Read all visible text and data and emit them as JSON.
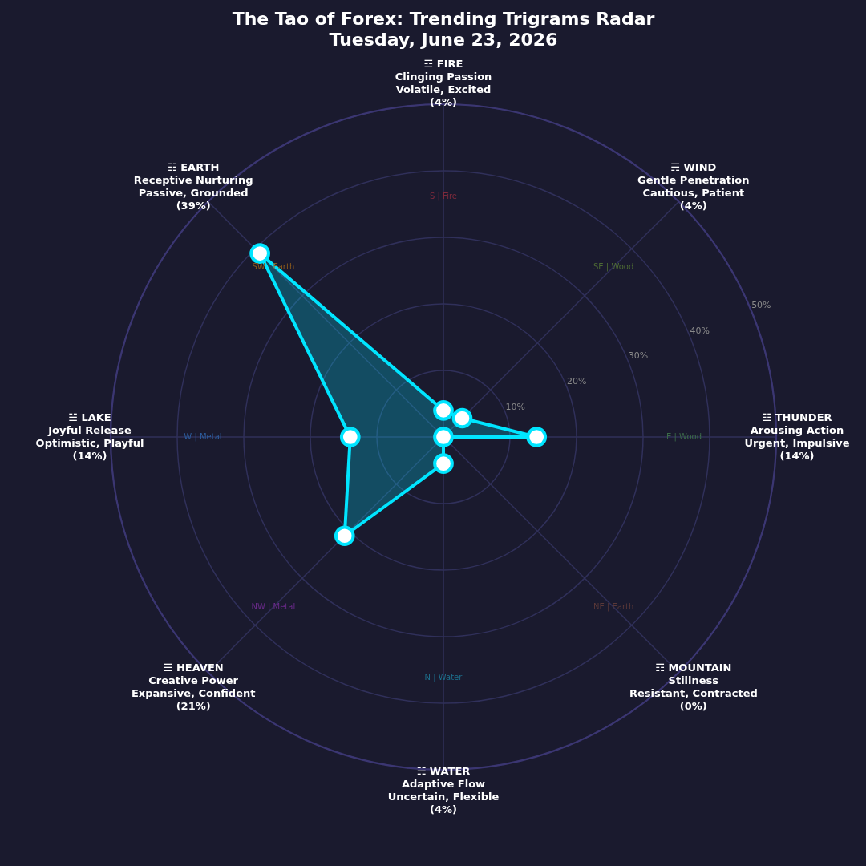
{
  "chart_data": {
    "type": "radar",
    "title": "The Tao of Forex: Trending Trigrams Radar",
    "subtitle": "Tuesday, June 23, 2026",
    "categories": [
      "☲ FIRE\nClinging Passion\nVolatile, Excited\n(4%)",
      "☴ WIND\nGentle Penetration\nCautious, Patient\n(4%)",
      "☳ THUNDER\nArousing Action\nUrgent, Impulsive\n(14%)",
      "☶ MOUNTAIN\nStillness\nResistant, Contracted\n(0%)",
      "☵ WATER\nAdaptive Flow\nUncertain, Flexible\n(4%)",
      "☰ HEAVEN\nCreative Power\nExpansive, Confident\n(21%)",
      "☱ LAKE\nJoyful Release\nOptimistic, Playful\n(14%)",
      "☷ EARTH\nReceptive Nurturing\nPassive, Grounded\n(39%)"
    ],
    "series": [
      {
        "color": "#00e5ff",
        "values": [
          4,
          4,
          14,
          0,
          4,
          21,
          14,
          39
        ]
      }
    ],
    "ylim": [
      0,
      50
    ],
    "yticks": [
      {
        "value": 10,
        "label": "10%"
      },
      {
        "value": 20,
        "label": "20%"
      },
      {
        "value": 30,
        "label": "30%"
      },
      {
        "value": 40,
        "label": "40%"
      },
      {
        "value": 50,
        "label": "50%"
      }
    ],
    "grid": true,
    "marker": "circle",
    "line_style": "solid",
    "annotations": [
      "S | Fire",
      "SE | Wood",
      "E | Wood",
      "NE | Earth",
      "N | Water",
      "NW | Metal",
      "W | Metal",
      "SW | Earth"
    ]
  }
}
